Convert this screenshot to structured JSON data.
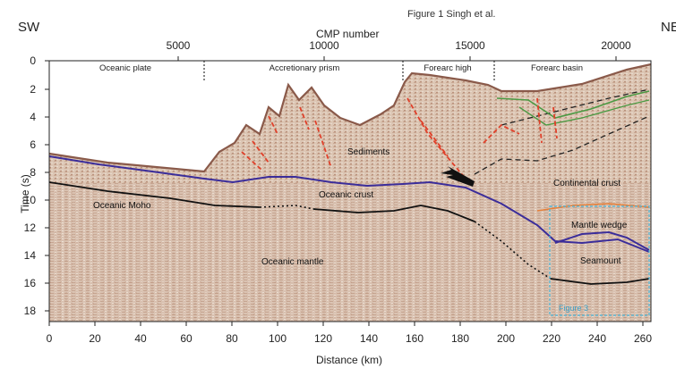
{
  "figure": {
    "title": "Figure 1 Singh et al.",
    "left_direction": "SW",
    "right_direction": "NE"
  },
  "axes": {
    "top_title": "CMP number",
    "top_ticks": [
      "5000",
      "10000",
      "15000",
      "20000"
    ],
    "y_title": "Time (s)",
    "y_ticks": [
      "0",
      "2",
      "4",
      "6",
      "8",
      "10",
      "12",
      "14",
      "16",
      "18"
    ],
    "x_title": "Distance (km)",
    "x_ticks": [
      "0",
      "20",
      "40",
      "60",
      "80",
      "100",
      "120",
      "140",
      "160",
      "180",
      "200",
      "220",
      "240",
      "260"
    ]
  },
  "regions": {
    "oceanic_plate": "Oceanic plate",
    "accretionary_prism": "Accretionary prism",
    "forearc_high": "Forearc high",
    "forearc_basin": "Forearc basin"
  },
  "features": {
    "sediments": "Sediments",
    "oceanic_crust": "Oceanic crust",
    "continental_crust": "Continental crust",
    "oceanic_moho": "Oceanic Moho",
    "mantle_wedge": "Mantle wedge",
    "seamount": "Seamount",
    "oceanic_mantle": "Oceanic mantle",
    "figure3": "Figure 3"
  },
  "colors": {
    "seismic_bg": "#dcc6b4",
    "seabed": "#8a5a4a",
    "blue_reflector": "#3b2d9a",
    "moho": "#111111",
    "faults": "#e0402a",
    "green_reflector": "#4c9a44",
    "figure3_box": "#48b4d8"
  }
}
